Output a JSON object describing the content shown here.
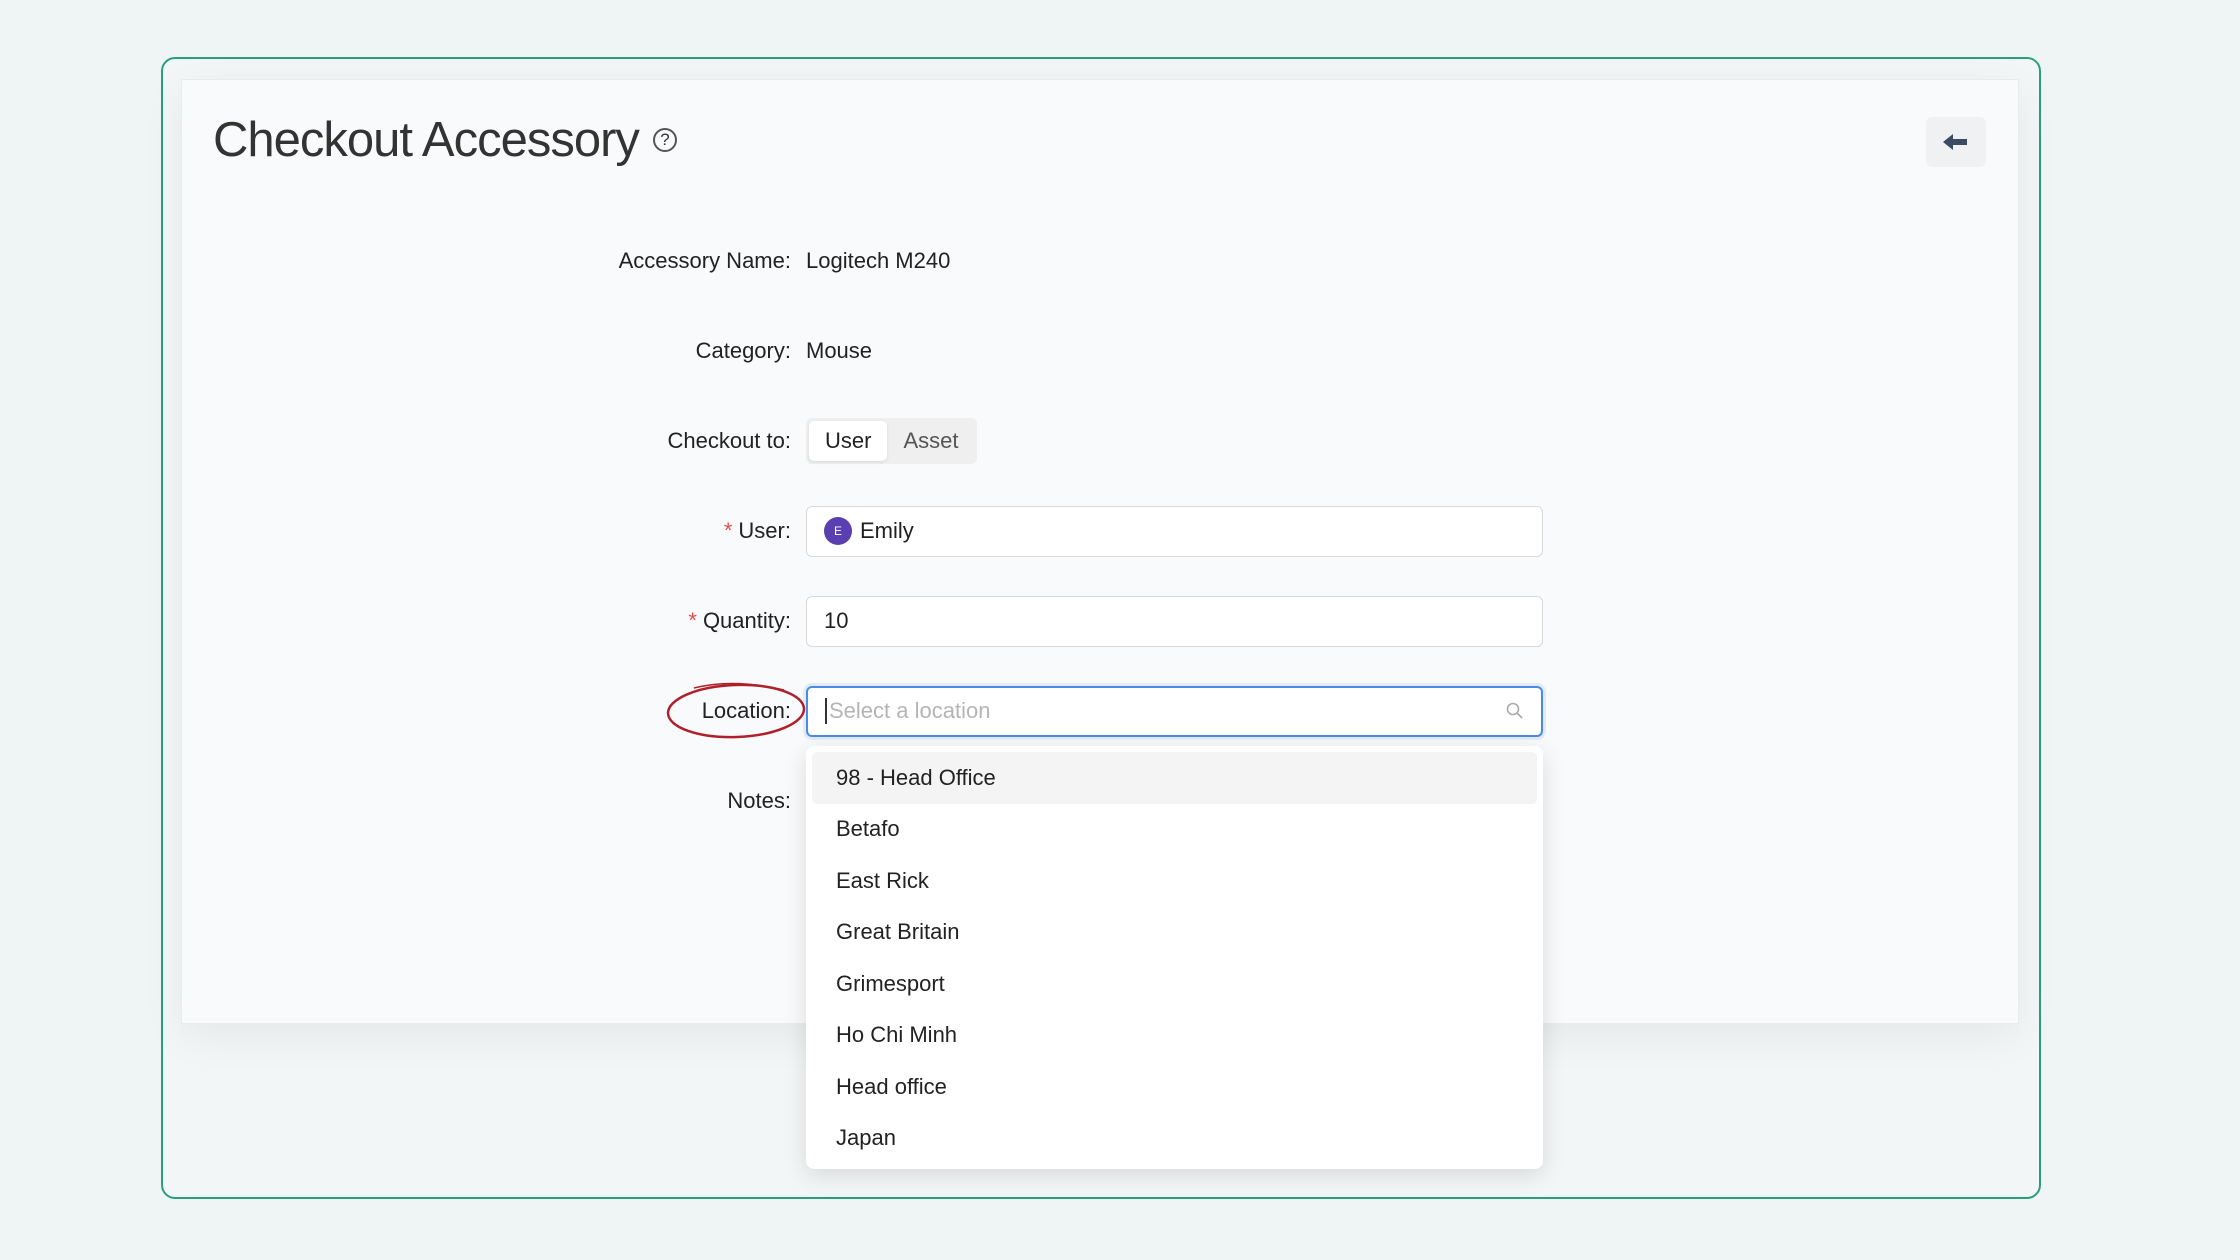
{
  "page": {
    "title": "Checkout Accessory"
  },
  "fields": {
    "accessory_name_label": "Accessory Name",
    "accessory_name_value": "Logitech M240",
    "category_label": "Category",
    "category_value": "Mouse",
    "checkout_to_label": "Checkout to",
    "checkout_to_options": [
      "User",
      "Asset"
    ],
    "checkout_to_selected": "User",
    "user_label": "User",
    "user_value": "Emily",
    "user_avatar_initial": "E",
    "quantity_label": "Quantity",
    "quantity_value": "10",
    "location_label": "Location",
    "location_placeholder": "Select a location",
    "notes_label": "Notes",
    "colon": ":",
    "required_mark": "*"
  },
  "location_dropdown": {
    "options": [
      "98 - Head Office",
      "Betafo",
      "East Rick",
      "Great Britain",
      "Grimesport",
      "Ho Chi Minh",
      "Head office",
      "Japan"
    ],
    "highlighted": "98 - Head Office"
  },
  "colors": {
    "frame": "#2aa07a",
    "focus": "#4a8be8",
    "required": "#e34d4d",
    "avatar": "#5a3fb0",
    "annotation": "#b0202a"
  }
}
